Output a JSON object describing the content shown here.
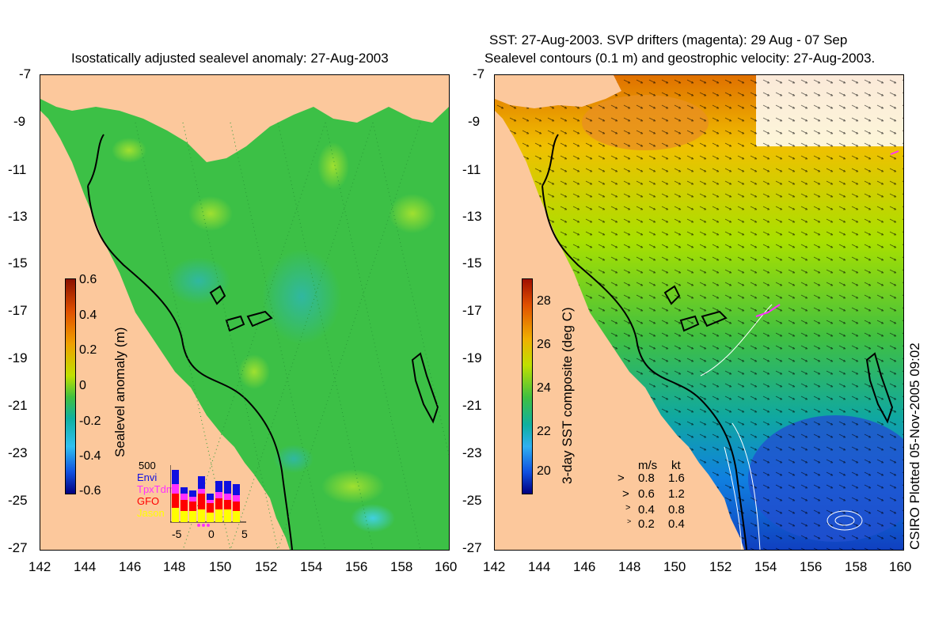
{
  "left_panel": {
    "title": "Isostatically adjusted sealevel anomaly: 27-Aug-2003",
    "colorbar": {
      "label": "Sealevel anomaly (m)",
      "ticks": [
        "0.6",
        "0.4",
        "0.2",
        "0",
        "-0.2",
        "-0.4",
        "-0.6"
      ]
    },
    "altimeter_histogram": {
      "top_tick": "500",
      "legend": [
        {
          "name": "Envi",
          "color": "#1010e0"
        },
        {
          "name": "TpxTdm",
          "color": "#ff30ff"
        },
        {
          "name": "GFO",
          "color": "#ff0000"
        },
        {
          "name": "Jason",
          "color": "#ffff00"
        }
      ],
      "x_ticks": [
        "-5",
        "0",
        "5"
      ]
    }
  },
  "right_panel": {
    "title_line1": "SST: 27-Aug-2003. SVP drifters (magenta): 29 Aug - 07 Sep",
    "title_line2": "Sealevel contours (0.1 m) and geostrophic velocity: 27-Aug-2003.",
    "colorbar": {
      "label": "3-day SST composite (deg C)",
      "ticks": [
        "28",
        "26",
        "24",
        "22",
        "20"
      ]
    },
    "vector_key": {
      "header_ms": "m/s",
      "header_kt": "kt",
      "rows": [
        {
          "ms": "0.8",
          "kt": "1.6"
        },
        {
          "ms": "0.6",
          "kt": "1.2"
        },
        {
          "ms": "0.4",
          "kt": "0.8"
        },
        {
          "ms": "0.2",
          "kt": "0.4"
        }
      ]
    },
    "credit": "CSIRO Plotted 05-Nov-2005 09:02"
  },
  "axes": {
    "lat_ticks": [
      "-7",
      "-9",
      "-11",
      "-13",
      "-15",
      "-17",
      "-19",
      "-21",
      "-23",
      "-25",
      "-27"
    ],
    "lon_ticks": [
      "142",
      "144",
      "146",
      "148",
      "150",
      "152",
      "154",
      "156",
      "158",
      "160"
    ]
  },
  "colors": {
    "land": "#fcc89c",
    "ssla_background": "#40c040",
    "coastline": "#000000"
  }
}
